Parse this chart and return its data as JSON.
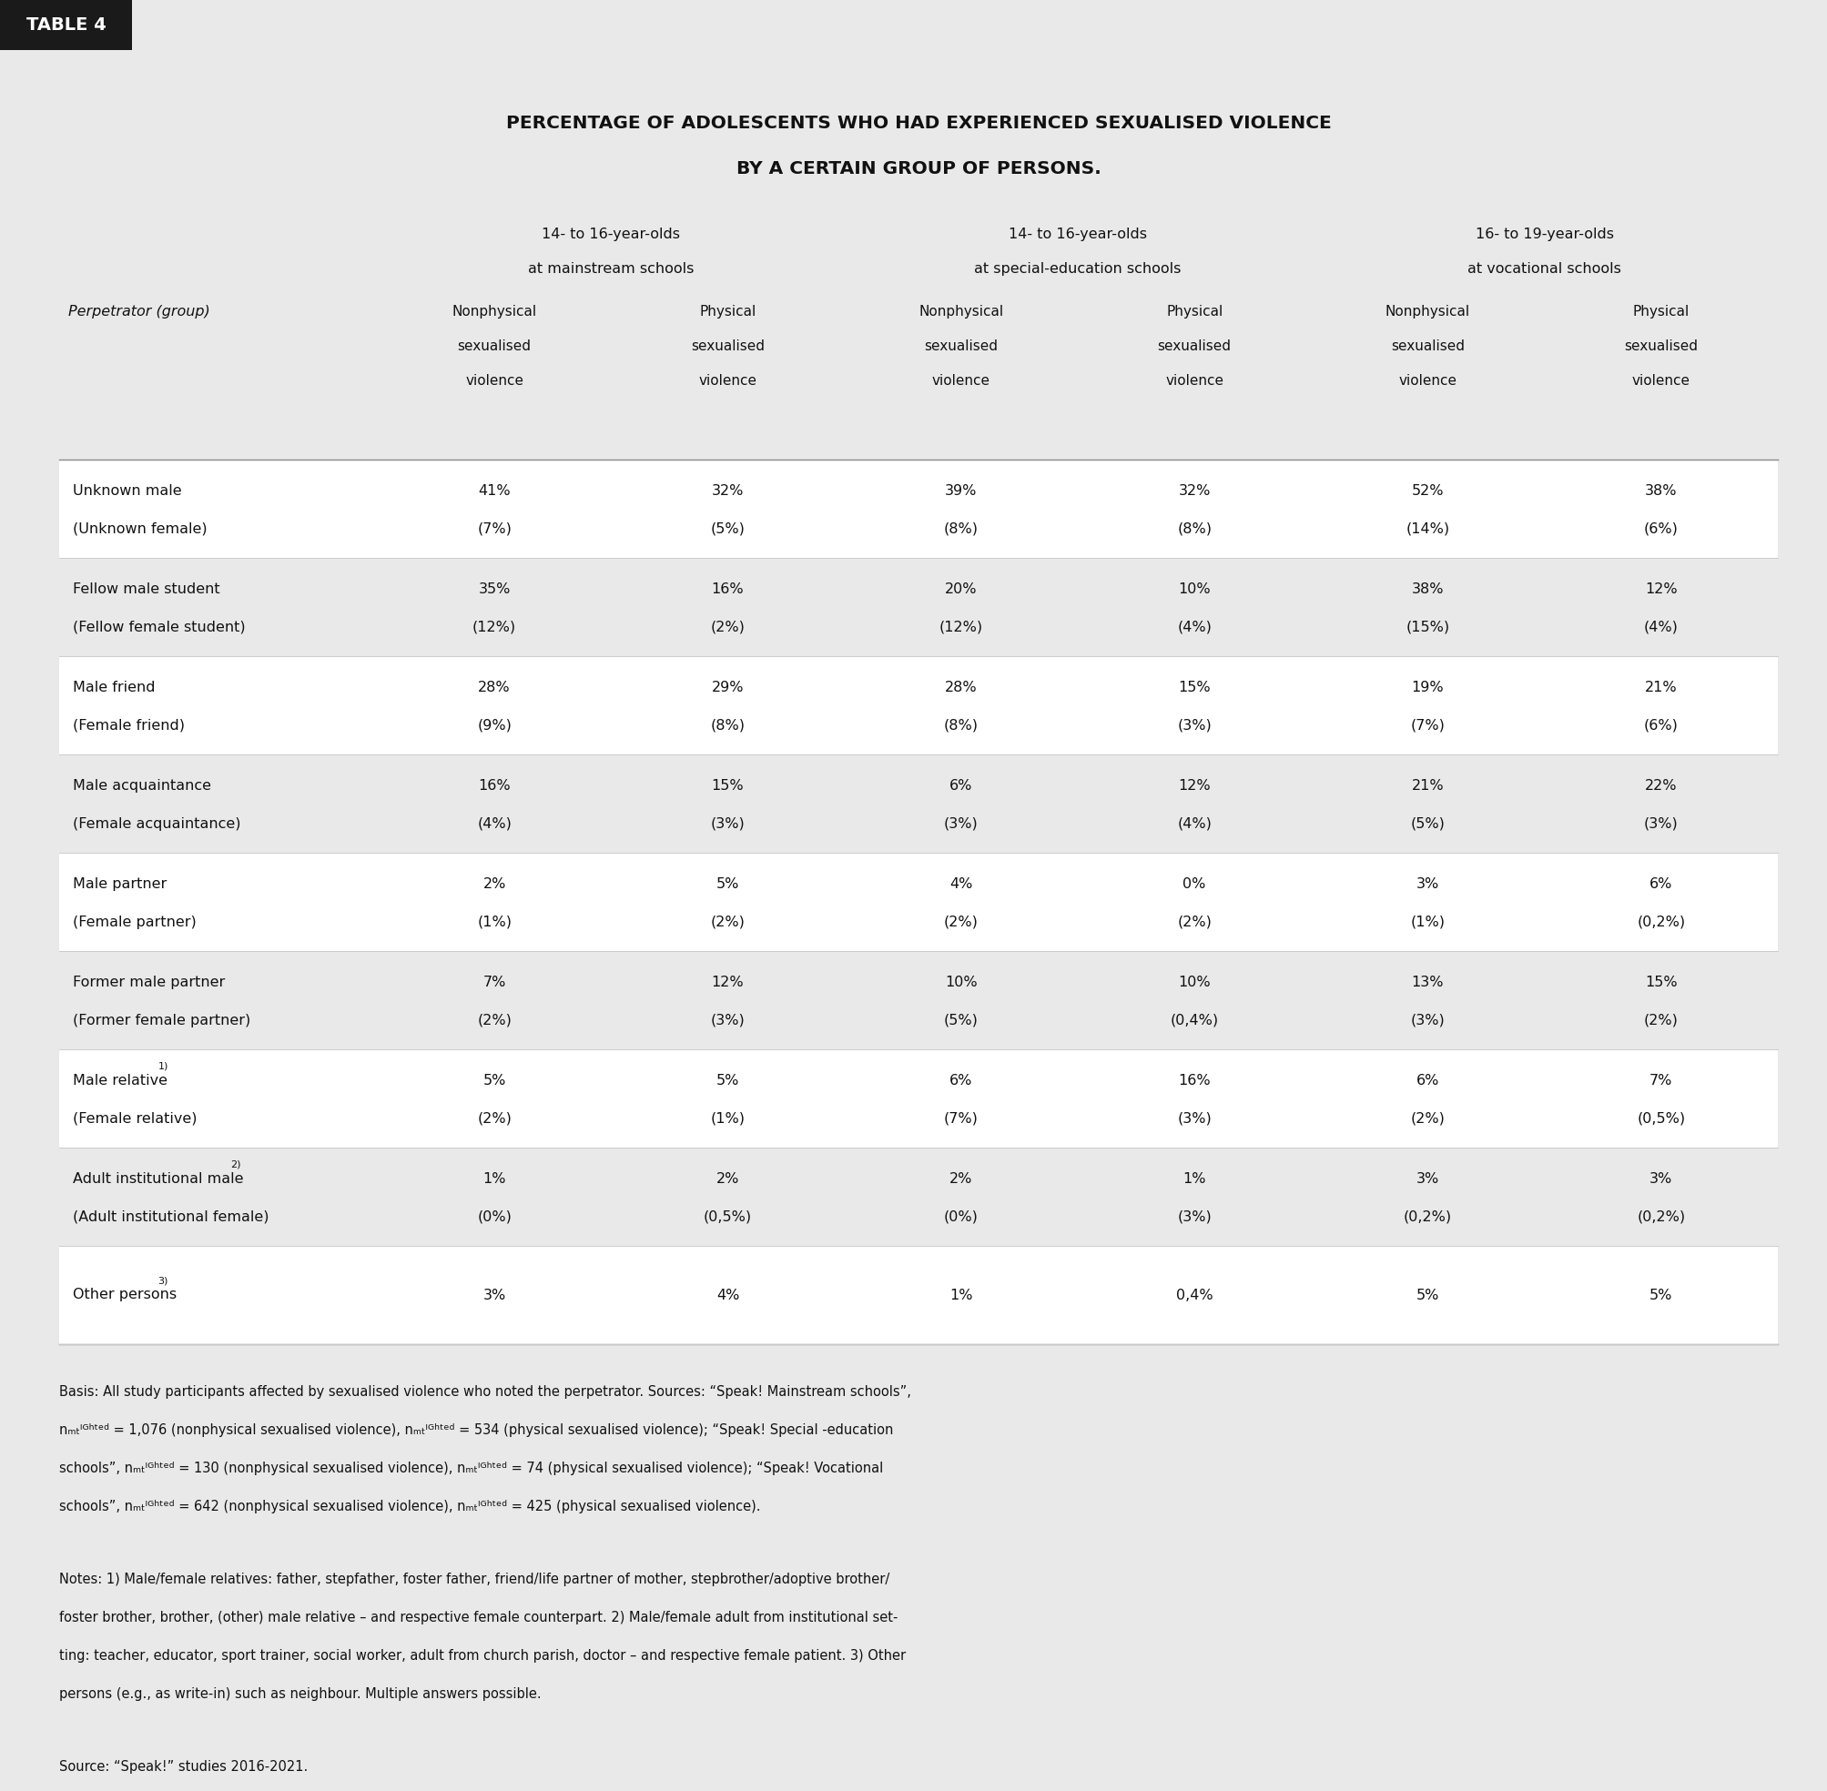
{
  "title_line1": "PERCENTAGE OF ADOLESCENTS WHO HAD EXPERIENCED SEXUALISED VIOLENCE",
  "title_line2": "BY A CERTAIN GROUP OF PERSONS.",
  "background_color": "#e9e9e9",
  "col_headers_top": [
    "14- to 16-year-olds\nat mainstream schools",
    "14- to 16-year-olds\nat special-education schools",
    "16- to 19-year-olds\nat vocational schools"
  ],
  "col_headers_sub": [
    "Nonphysical\nsexualised\nviolence",
    "Physical\nsexualised\nviolence",
    "Nonphysical\nsexualised\nviolence",
    "Physical\nsexualised\nviolence",
    "Nonphysical\nsexualised\nviolence",
    "Physical\nsexualised\nviolence"
  ],
  "row_header": "Perpetrator (group)",
  "rows": [
    {
      "label_line1": "Unknown male",
      "label_line2": "(Unknown female)",
      "values": [
        "41%",
        "32%",
        "39%",
        "32%",
        "52%",
        "38%"
      ],
      "values2": [
        "(7%)",
        "(5%)",
        "(8%)",
        "(8%)",
        "(14%)",
        "(6%)"
      ],
      "white_bg": true
    },
    {
      "label_line1": "Fellow male student",
      "label_line2": "(Fellow female student)",
      "values": [
        "35%",
        "16%",
        "20%",
        "10%",
        "38%",
        "12%"
      ],
      "values2": [
        "(12%)",
        "(2%)",
        "(12%)",
        "(4%)",
        "(15%)",
        "(4%)"
      ],
      "white_bg": false
    },
    {
      "label_line1": "Male friend",
      "label_line2": "(Female friend)",
      "values": [
        "28%",
        "29%",
        "28%",
        "15%",
        "19%",
        "21%"
      ],
      "values2": [
        "(9%)",
        "(8%)",
        "(8%)",
        "(3%)",
        "(7%)",
        "(6%)"
      ],
      "white_bg": true
    },
    {
      "label_line1": "Male acquaintance",
      "label_line2": "(Female acquaintance)",
      "values": [
        "16%",
        "15%",
        "6%",
        "12%",
        "21%",
        "22%"
      ],
      "values2": [
        "(4%)",
        "(3%)",
        "(3%)",
        "(4%)",
        "(5%)",
        "(3%)"
      ],
      "white_bg": false
    },
    {
      "label_line1": "Male partner",
      "label_line2": "(Female partner)",
      "values": [
        "2%",
        "5%",
        "4%",
        "0%",
        "3%",
        "6%"
      ],
      "values2": [
        "(1%)",
        "(2%)",
        "(2%)",
        "(2%)",
        "(1%)",
        "(0,2%)"
      ],
      "white_bg": true
    },
    {
      "label_line1": "Former male partner",
      "label_line2": "(Former female partner)",
      "values": [
        "7%",
        "12%",
        "10%",
        "10%",
        "13%",
        "15%"
      ],
      "values2": [
        "(2%)",
        "(3%)",
        "(5%)",
        "(0,4%)",
        "(3%)",
        "(2%)"
      ],
      "white_bg": false
    },
    {
      "label_line1": "Male relative",
      "label_line2": "(Female relative)",
      "label_line1_super": "1)",
      "values": [
        "5%",
        "5%",
        "6%",
        "16%",
        "6%",
        "7%"
      ],
      "values2": [
        "(2%)",
        "(1%)",
        "(7%)",
        "(3%)",
        "(2%)",
        "(0,5%)"
      ],
      "white_bg": true
    },
    {
      "label_line1": "Adult institutional male",
      "label_line2": "(Adult institutional female)",
      "label_line1_super": "2)",
      "values": [
        "1%",
        "2%",
        "2%",
        "1%",
        "3%",
        "3%"
      ],
      "values2": [
        "(0%)",
        "(0,5%)",
        "(0%)",
        "(3%)",
        "(0,2%)",
        "(0,2%)"
      ],
      "white_bg": false
    },
    {
      "label_line1": "Other persons",
      "label_line2": null,
      "label_line1_super": "3)",
      "values": [
        "3%",
        "4%",
        "1%",
        "0,4%",
        "5%",
        "5%"
      ],
      "values2": [
        null,
        null,
        null,
        null,
        null,
        null
      ],
      "white_bg": true
    }
  ],
  "basis_text_lines": [
    "Basis: All study participants affected by sexualised violence who noted the perpetrator. Sources: “Speak! Mainstream schools”,",
    "nₘₜᴵᴳʰᵗᵉᵈ = 1,076 (nonphysical sexualised violence), nₘₜᴵᴳʰᵗᵉᵈ = 534 (physical sexualised violence); “Speak! Special -education",
    "schools”, nₘₜᴵᴳʰᵗᵉᵈ = 130 (nonphysical sexualised violence), nₘₜᴵᴳʰᵗᵉᵈ = 74 (physical sexualised violence); “Speak! Vocational",
    "schools”, nₘₜᴵᴳʰᵗᵉᵈ = 642 (nonphysical sexualised violence), nₘₜᴵᴳʰᵗᵉᵈ = 425 (physical sexualised violence)."
  ],
  "notes_text_lines": [
    "Notes: 1) Male/female relatives: father, stepfather, foster father, friend/life partner of mother, stepbrother/adoptive brother/",
    "foster brother, brother, (other) male relative – and respective female counterpart. 2) Male/female adult from institutional set-",
    "ting: teacher, educator, sport trainer, social worker, adult from church parish, doctor – and respective female patient. 3) Other",
    "persons (e.g., as write-in) such as neighbour. Multiple answers possible."
  ],
  "source_text": "Source: “Speak!” studies 2016-2021."
}
